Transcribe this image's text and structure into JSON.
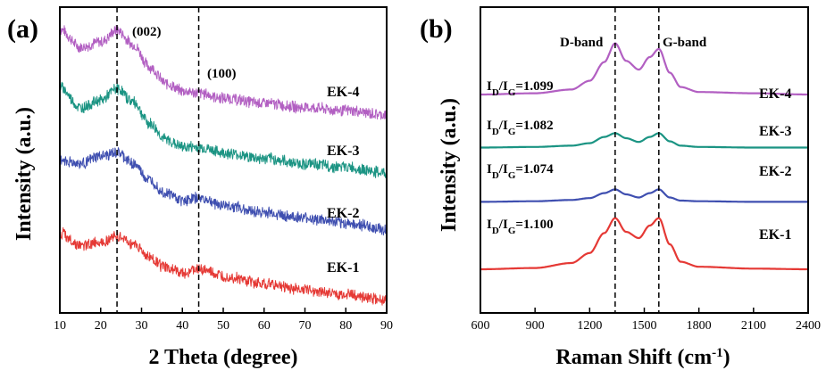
{
  "panels": [
    {
      "label": "(a)",
      "xlabel": "2 Theta (degree)",
      "ylabel": "Intensity (a.u.)",
      "x_ticks": [
        "10",
        "20",
        "30",
        "40",
        "50",
        "60",
        "70",
        "80",
        "90"
      ],
      "ref_lines": [
        {
          "x": 24,
          "label": "(002)"
        },
        {
          "x": 44,
          "label": "(100)"
        }
      ],
      "series": [
        {
          "name": "EK-4",
          "color": "#b25fc2"
        },
        {
          "name": "EK-3",
          "color": "#1b9483"
        },
        {
          "name": "EK-2",
          "color": "#3f4fb0"
        },
        {
          "name": "EK-1",
          "color": "#e53935"
        }
      ]
    },
    {
      "label": "(b)",
      "xlabel": "Raman Shift (cm",
      "xlabel_sup": "-1",
      "xlabel_end": ")",
      "ylabel": "Intensity (a.u.)",
      "x_ticks": [
        "600",
        "900",
        "1200",
        "1500",
        "1800",
        "2100",
        "2400"
      ],
      "ref_lines": [
        {
          "x": 1340,
          "label": "D-band"
        },
        {
          "x": 1580,
          "label": "G-band"
        }
      ],
      "series": [
        {
          "name": "EK-4",
          "color": "#b25fc2",
          "ratio": "=1.099"
        },
        {
          "name": "EK-3",
          "color": "#1b9483",
          "ratio": "=1.082"
        },
        {
          "name": "EK-2",
          "color": "#3f4fb0",
          "ratio": "=1.074"
        },
        {
          "name": "EK-1",
          "color": "#e53935",
          "ratio": "=1.100"
        }
      ]
    }
  ],
  "chart_data": [
    {
      "type": "line",
      "title": "",
      "xlabel": "2 Theta (degree)",
      "ylabel": "Intensity (a.u.)",
      "xlim": [
        10,
        90
      ],
      "annotations": [
        "(002)",
        "(100)"
      ],
      "series": [
        {
          "name": "EK-4",
          "x": [
            10,
            15,
            20,
            24,
            28,
            32,
            36,
            40,
            44,
            50,
            60,
            70,
            80,
            90
          ],
          "values": [
            3.8,
            3.55,
            3.62,
            3.78,
            3.58,
            3.28,
            3.05,
            2.95,
            2.92,
            2.85,
            2.78,
            2.72,
            2.68,
            2.62
          ]
        },
        {
          "name": "EK-3",
          "x": [
            10,
            15,
            20,
            24,
            28,
            32,
            36,
            40,
            44,
            50,
            60,
            70,
            80,
            90
          ],
          "values": [
            3.0,
            2.72,
            2.82,
            2.98,
            2.8,
            2.5,
            2.28,
            2.18,
            2.18,
            2.1,
            2.02,
            1.95,
            1.9,
            1.82
          ]
        },
        {
          "name": "EK-2",
          "x": [
            10,
            15,
            20,
            24,
            28,
            32,
            36,
            40,
            44,
            50,
            60,
            70,
            80,
            90
          ],
          "values": [
            2.0,
            1.95,
            2.05,
            2.1,
            1.95,
            1.72,
            1.55,
            1.45,
            1.48,
            1.38,
            1.28,
            1.2,
            1.13,
            1.05
          ]
        },
        {
          "name": "EK-1",
          "x": [
            10,
            15,
            20,
            24,
            28,
            32,
            36,
            40,
            44,
            50,
            60,
            70,
            80,
            90
          ],
          "values": [
            1.0,
            0.82,
            0.88,
            0.95,
            0.85,
            0.66,
            0.52,
            0.45,
            0.5,
            0.4,
            0.3,
            0.22,
            0.15,
            0.08
          ]
        }
      ]
    },
    {
      "type": "line",
      "title": "",
      "xlabel": "Raman Shift (cm-1)",
      "ylabel": "Intensity (a.u.)",
      "xlim": [
        600,
        2400
      ],
      "annotations": [
        "D-band",
        "G-band"
      ],
      "series": [
        {
          "name": "EK-4",
          "x": [
            600,
            900,
            1100,
            1200,
            1280,
            1340,
            1400,
            1470,
            1530,
            1580,
            1640,
            1700,
            1800,
            2100,
            2400
          ],
          "values": [
            3.2,
            3.22,
            3.28,
            3.42,
            3.72,
            4.02,
            3.74,
            3.6,
            3.8,
            3.93,
            3.55,
            3.32,
            3.24,
            3.22,
            3.2
          ]
        },
        {
          "name": "EK-3",
          "x": [
            600,
            900,
            1100,
            1200,
            1280,
            1340,
            1400,
            1470,
            1530,
            1580,
            1640,
            1700,
            1800,
            2100,
            2400
          ],
          "values": [
            2.35,
            2.36,
            2.38,
            2.42,
            2.52,
            2.58,
            2.5,
            2.44,
            2.52,
            2.58,
            2.45,
            2.38,
            2.36,
            2.35,
            2.35
          ]
        },
        {
          "name": "EK-2",
          "x": [
            600,
            900,
            1100,
            1200,
            1280,
            1340,
            1400,
            1470,
            1530,
            1580,
            1640,
            1700,
            1800,
            2100,
            2400
          ],
          "values": [
            1.48,
            1.49,
            1.51,
            1.54,
            1.62,
            1.68,
            1.6,
            1.55,
            1.62,
            1.68,
            1.55,
            1.5,
            1.49,
            1.48,
            1.48
          ]
        },
        {
          "name": "EK-1",
          "x": [
            600,
            900,
            1100,
            1200,
            1280,
            1340,
            1400,
            1470,
            1530,
            1580,
            1640,
            1700,
            1800,
            2100,
            2400
          ],
          "values": [
            0.4,
            0.42,
            0.5,
            0.66,
            0.98,
            1.22,
            1.0,
            0.9,
            1.1,
            1.22,
            0.8,
            0.52,
            0.44,
            0.41,
            0.4
          ]
        }
      ]
    }
  ]
}
